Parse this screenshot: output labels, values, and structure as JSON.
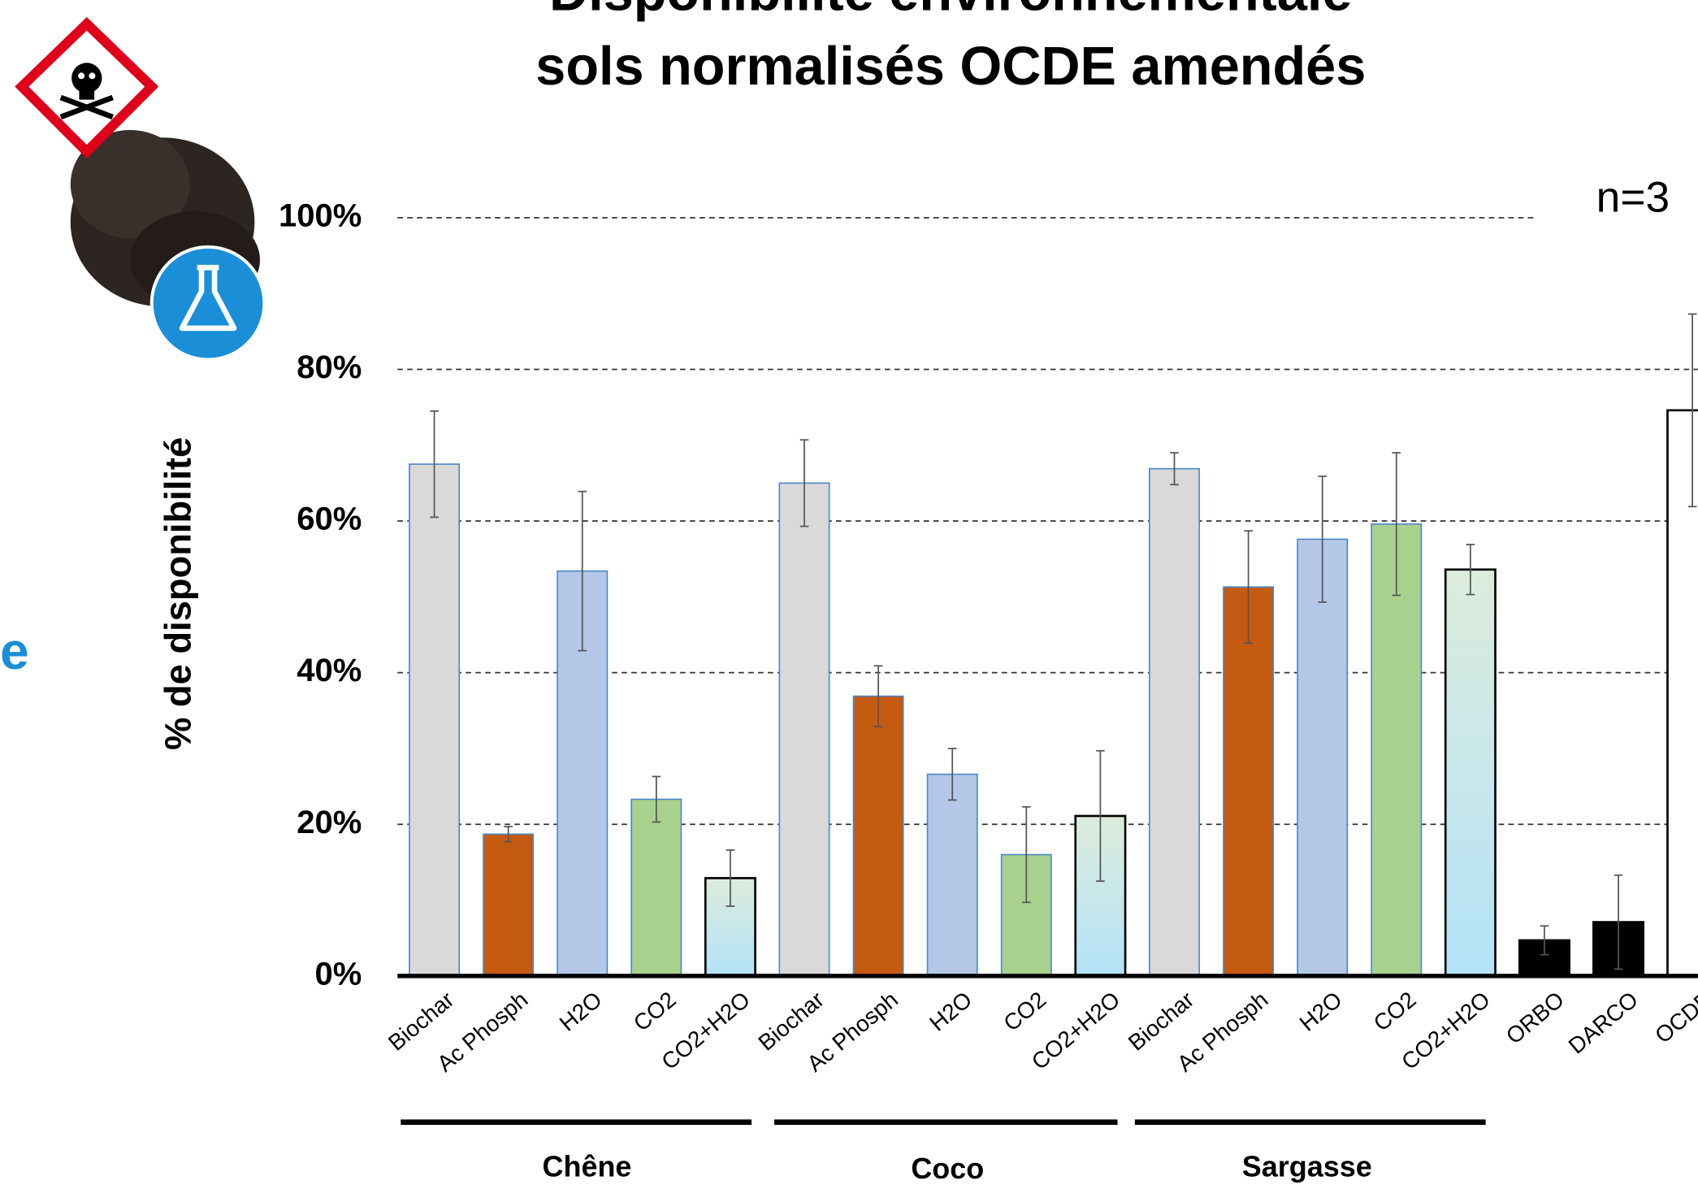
{
  "chart_data": {
    "type": "bar",
    "title": [
      "Disponibilité environnementale",
      "sols normalisés OCDE amendés"
    ],
    "ylabel": "% de disponibilité",
    "annotation": "n=3",
    "categories": [
      "Biochar",
      "Ac Phosph",
      "H2O",
      "CO2",
      "CO2+H2O",
      "Biochar",
      "Ac Phosph",
      "H2O",
      "CO2",
      "CO2+H2O",
      "Biochar",
      "Ac Phosph",
      "H2O",
      "CO2",
      "CO2+H2O",
      "ORBO",
      "DARCO",
      "OCDE"
    ],
    "groups": [
      "Chêne",
      "Coco",
      "Sargasse"
    ],
    "values": [
      67.5,
      18.7,
      53.4,
      23.3,
      12.9,
      65,
      36.9,
      26.6,
      16,
      21.1,
      66.9,
      51.3,
      57.6,
      59.6,
      53.6,
      4.7,
      7.1,
      74.6
    ],
    "errors": [
      7,
      1,
      10.5,
      3,
      3.7,
      5.7,
      4,
      3.4,
      6.3,
      8.6,
      2.1,
      7.4,
      8.3,
      9.4,
      3.3,
      1.9,
      6.2,
      12.7
    ],
    "colors": [
      "#d9d9d9",
      "#c55a11",
      "#b4c7e7",
      "#a9d18e",
      [
        "#dcecdc",
        "#b3e2f8"
      ],
      "#d9d9d9",
      "#c55a11",
      "#b4c7e7",
      "#a9d18e",
      [
        "#dcecdc",
        "#b3e2f8"
      ],
      "#d9d9d9",
      "#c55a11",
      "#b4c7e7",
      "#a9d18e",
      [
        "#dcecdc",
        "#b3e2f8"
      ],
      "#000000",
      "#000000",
      "#ffffff"
    ],
    "ylim": [
      0,
      100
    ],
    "yticks": [
      {
        "value": 0,
        "label": "0%"
      },
      {
        "value": 20,
        "label": "20%"
      },
      {
        "value": 40,
        "label": "40%"
      },
      {
        "value": 60,
        "label": "60%"
      },
      {
        "value": 80,
        "label": "80%"
      },
      {
        "value": 100,
        "label": "100%"
      }
    ],
    "grid": true
  },
  "side_text": "e"
}
